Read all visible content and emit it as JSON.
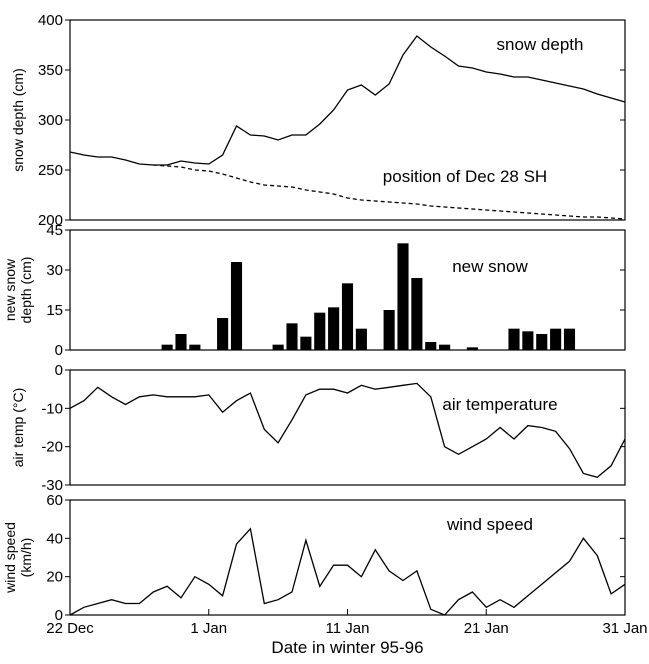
{
  "chart_data": [
    {
      "type": "line",
      "ylabel": [
        "snow depth (cm)"
      ],
      "x": [
        0,
        1,
        2,
        3,
        4,
        5,
        6,
        7,
        8,
        9,
        10,
        11,
        12,
        13,
        14,
        15,
        16,
        17,
        18,
        19,
        20,
        21,
        22,
        23,
        24,
        25,
        26,
        27,
        28,
        29,
        30,
        31,
        32,
        33,
        34,
        35,
        36,
        37,
        38,
        39,
        40
      ],
      "xlim": [
        0,
        40
      ],
      "ylim": [
        200,
        400
      ],
      "yticks": [
        200,
        250,
        300,
        350,
        400
      ],
      "series": [
        {
          "name": "snow depth",
          "color": "#000000",
          "linestyle": "solid",
          "values": [
            268,
            265,
            263,
            263,
            260,
            256,
            255,
            255,
            259,
            257,
            256,
            265,
            294,
            285,
            284,
            280,
            285,
            285,
            296,
            310,
            330,
            335,
            325,
            336,
            365,
            384,
            373,
            364,
            354,
            352,
            348,
            346,
            343,
            343,
            340,
            337,
            334,
            331,
            326,
            322,
            318
          ]
        },
        {
          "name": "position of Dec 28 SH",
          "color": "#000000",
          "linestyle": "dashed",
          "values": [
            null,
            null,
            null,
            null,
            null,
            null,
            255,
            254,
            253,
            250,
            249,
            246,
            242,
            238,
            235,
            234,
            233,
            230,
            228,
            226,
            222,
            220,
            219,
            218,
            217,
            216,
            214,
            213,
            212,
            211,
            210,
            209,
            208,
            207,
            206,
            205,
            204,
            203,
            203,
            202,
            201
          ]
        }
      ]
    },
    {
      "type": "bar",
      "ylabel": [
        "new snow",
        "depth (cm)"
      ],
      "x": [
        0,
        1,
        2,
        3,
        4,
        5,
        6,
        7,
        8,
        9,
        10,
        11,
        12,
        13,
        14,
        15,
        16,
        17,
        18,
        19,
        20,
        21,
        22,
        23,
        24,
        25,
        26,
        27,
        28,
        29,
        30,
        31,
        32,
        33,
        34,
        35,
        36,
        37,
        38,
        39,
        40
      ],
      "xlim": [
        0,
        40
      ],
      "ylim": [
        0,
        45
      ],
      "yticks": [
        0,
        15,
        30,
        45
      ],
      "series": [
        {
          "name": "new snow",
          "color": "#000000",
          "values": [
            0,
            0,
            0,
            0,
            0,
            0,
            0,
            2,
            6,
            2,
            0,
            12,
            33,
            0,
            0,
            2,
            10,
            5,
            14,
            16,
            25,
            8,
            0,
            15,
            40,
            27,
            3,
            2,
            0,
            1,
            0,
            0,
            8,
            7,
            6,
            8,
            8,
            0,
            0,
            0,
            0
          ]
        }
      ]
    },
    {
      "type": "line",
      "ylabel": [
        "air temp (°C)"
      ],
      "x": [
        0,
        1,
        2,
        3,
        4,
        5,
        6,
        7,
        8,
        9,
        10,
        11,
        12,
        13,
        14,
        15,
        16,
        17,
        18,
        19,
        20,
        21,
        22,
        23,
        24,
        25,
        26,
        27,
        28,
        29,
        30,
        31,
        32,
        33,
        34,
        35,
        36,
        37,
        38,
        39,
        40
      ],
      "xlim": [
        0,
        40
      ],
      "ylim": [
        -30,
        0
      ],
      "yticks": [
        -30,
        -20,
        -10,
        0
      ],
      "series": [
        {
          "name": "air temperature",
          "color": "#000000",
          "linestyle": "solid",
          "values": [
            -10,
            -8,
            -4.5,
            -7,
            -9,
            -7,
            -6.5,
            -7,
            -7,
            -7,
            -6.5,
            -11,
            -8,
            -6,
            -15.5,
            -19,
            -13,
            -6.5,
            -5,
            -5,
            -6,
            -4,
            -5,
            -4.5,
            -4,
            -3.5,
            -7,
            -20,
            -22,
            -20,
            -18,
            -15,
            -18,
            -14.5,
            -15,
            -16,
            -20.5,
            -27,
            -28,
            -25,
            -18
          ]
        }
      ]
    },
    {
      "type": "line",
      "ylabel": [
        "wind speed",
        "(km/h)"
      ],
      "xlabel": "Date in winter 95-96",
      "x": [
        0,
        1,
        2,
        3,
        4,
        5,
        6,
        7,
        8,
        9,
        10,
        11,
        12,
        13,
        14,
        15,
        16,
        17,
        18,
        19,
        20,
        21,
        22,
        23,
        24,
        25,
        26,
        27,
        28,
        29,
        30,
        31,
        32,
        33,
        34,
        35,
        36,
        37,
        38,
        39,
        40
      ],
      "xlim": [
        0,
        40
      ],
      "ylim": [
        0,
        60
      ],
      "yticks": [
        0,
        20,
        40,
        60
      ],
      "xticks": [
        {
          "value": 0,
          "label": "22 Dec"
        },
        {
          "value": 10,
          "label": "1 Jan"
        },
        {
          "value": 20,
          "label": "11 Jan"
        },
        {
          "value": 30,
          "label": "21 Jan"
        },
        {
          "value": 40,
          "label": "31 Jan"
        }
      ],
      "series": [
        {
          "name": "wind speed",
          "color": "#000000",
          "linestyle": "solid",
          "values": [
            0,
            4,
            6,
            8,
            6,
            6,
            12,
            15,
            9,
            20,
            16,
            10,
            37,
            45,
            6,
            8,
            12,
            39,
            15,
            26,
            26,
            20,
            34,
            23,
            18,
            23,
            3,
            0,
            8,
            12,
            4,
            8,
            4,
            10,
            16,
            22,
            28,
            40,
            31,
            11,
            16
          ]
        }
      ]
    }
  ]
}
